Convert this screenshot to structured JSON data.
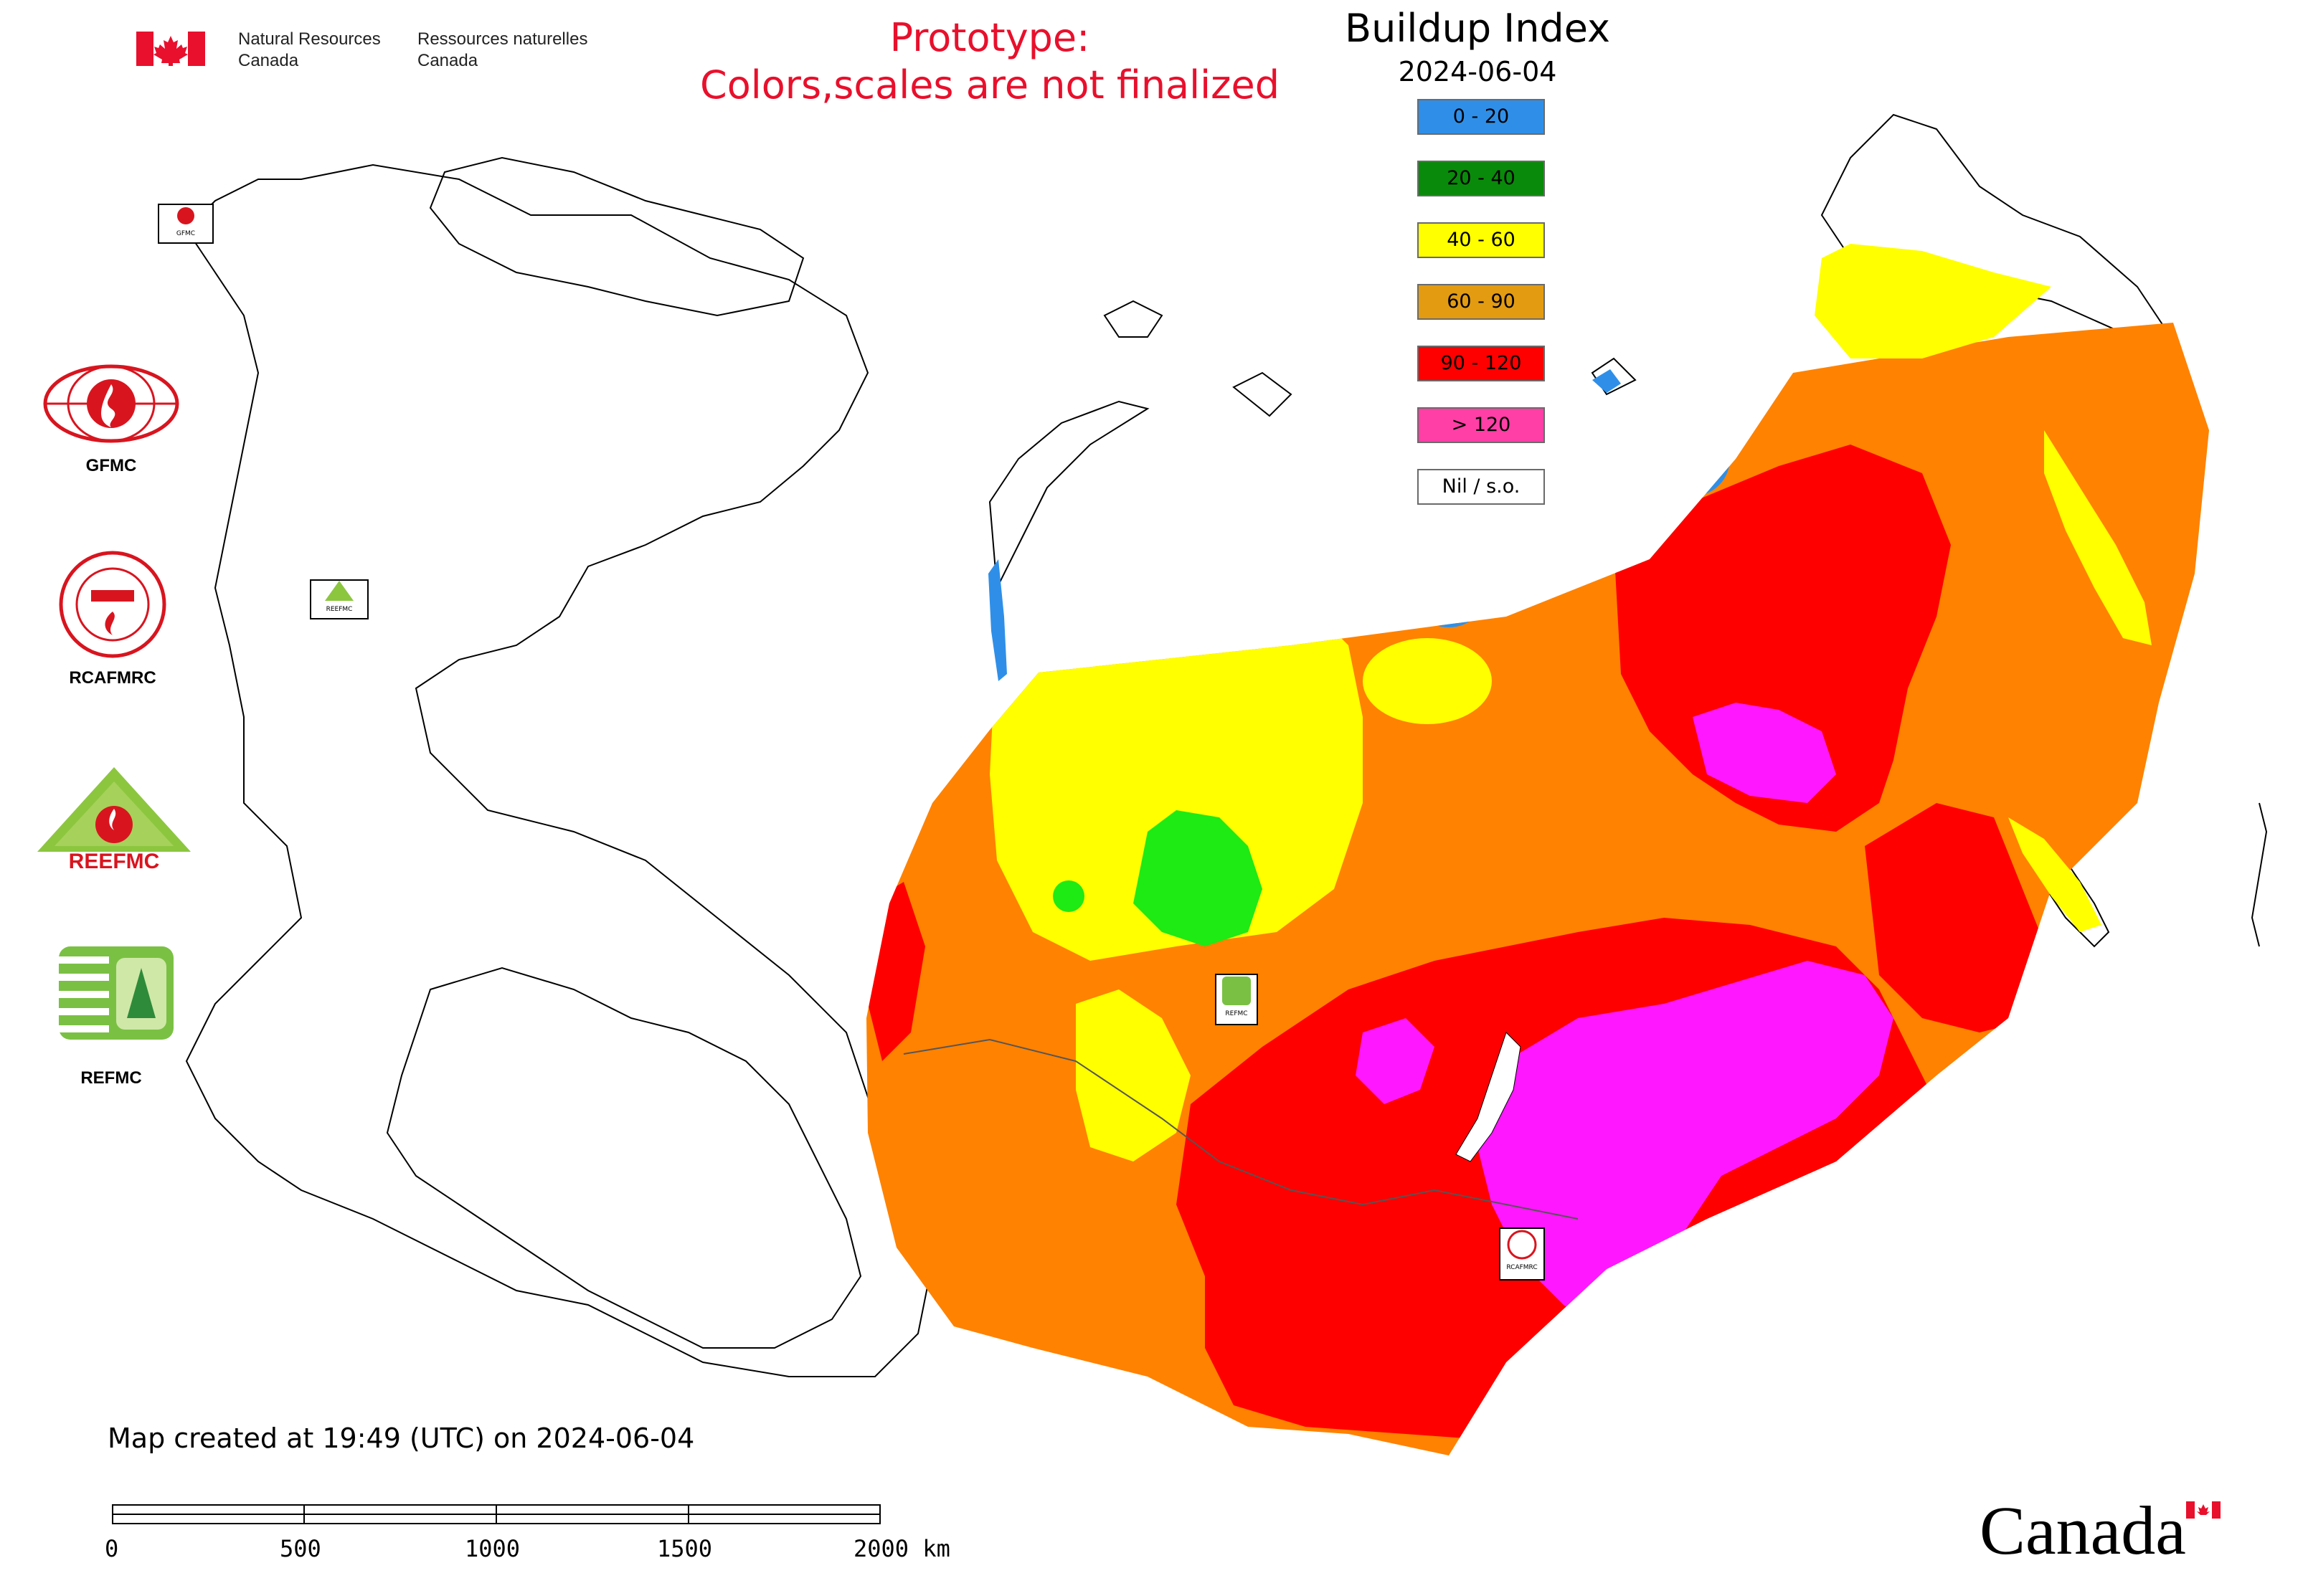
{
  "header": {
    "gov_en_line1": "Natural Resources",
    "gov_en_line2": "Canada",
    "gov_fr_line1": "Ressources naturelles",
    "gov_fr_line2": "Canada",
    "prototype_line1": "Prototype:",
    "prototype_line2": "Colors,scales are not finalized"
  },
  "legend": {
    "title": "Buildup Index",
    "date": "2024-06-04",
    "items": [
      {
        "label": "0 - 20",
        "color": "#2f8fe8"
      },
      {
        "label": "20 - 40",
        "color": "#0a8a0a"
      },
      {
        "label": "40 - 60",
        "color": "#ffff00"
      },
      {
        "label": "60 - 90",
        "color": "#e39b12"
      },
      {
        "label": "90 - 120",
        "color": "#ff0000"
      },
      {
        "label": "> 120",
        "color": "#ff3fa6"
      },
      {
        "label": "Nil / s.o.",
        "color": "#ffffff"
      }
    ]
  },
  "map_colors": {
    "low": "#2f8fe8",
    "green": "#1eea14",
    "yellow": "#ffff00",
    "orange": "#ff8200",
    "red": "#ff0000",
    "magenta": "#ff18ff",
    "outline": "#000000"
  },
  "agencies": {
    "gfmc": "GFMC",
    "rcafmrc": "RCAFMRC",
    "reefmc": "REEFMC",
    "refmc": "REFMC",
    "gfmc_small": "GFMC",
    "reefmc_small": "REEFMC",
    "refmc_small": "REFMC",
    "rcafmrc_small": "RCAFMRC"
  },
  "footer": {
    "created": "Map created at 19:49 (UTC) on 2024-06-04",
    "scale_labels": [
      "0",
      "500",
      "1000",
      "1500",
      "2000 km"
    ],
    "wordmark": "Canada"
  }
}
